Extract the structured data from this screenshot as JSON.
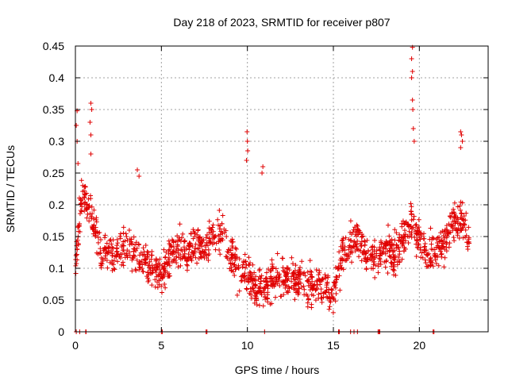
{
  "chart_data": {
    "type": "scatter",
    "title": "Day 218 of 2023, SRMTID for receiver p807",
    "xlabel": "GPS time / hours",
    "ylabel": "SRMTID / TECUs",
    "xlim": [
      0,
      24
    ],
    "ylim": [
      0,
      0.45
    ],
    "x_ticks": [
      0,
      5,
      10,
      15,
      20
    ],
    "x_tick_labels": [
      "0",
      "5",
      "10",
      "15",
      "20"
    ],
    "y_ticks": [
      0,
      0.05,
      0.1,
      0.15,
      0.2,
      0.25,
      0.3,
      0.35,
      0.4,
      0.45
    ],
    "y_tick_labels": [
      "0",
      "0.05",
      "0.1",
      "0.15",
      "0.2",
      "0.25",
      "0.3",
      "0.35",
      "0.4",
      "0.45"
    ],
    "grid": true,
    "marker": "+",
    "color": "#e00000",
    "x_range_hours": [
      0,
      22.9
    ],
    "trend": [
      [
        0.0,
        0.1
      ],
      [
        0.3,
        0.2
      ],
      [
        0.6,
        0.21
      ],
      [
        1.0,
        0.17
      ],
      [
        1.5,
        0.13
      ],
      [
        2.0,
        0.12
      ],
      [
        2.5,
        0.13
      ],
      [
        3.0,
        0.14
      ],
      [
        3.5,
        0.12
      ],
      [
        4.0,
        0.11
      ],
      [
        4.5,
        0.1
      ],
      [
        5.0,
        0.09
      ],
      [
        5.5,
        0.12
      ],
      [
        6.0,
        0.13
      ],
      [
        6.5,
        0.12
      ],
      [
        7.0,
        0.14
      ],
      [
        7.5,
        0.13
      ],
      [
        8.0,
        0.15
      ],
      [
        8.5,
        0.16
      ],
      [
        9.0,
        0.12
      ],
      [
        9.5,
        0.1
      ],
      [
        10.0,
        0.09
      ],
      [
        10.5,
        0.07
      ],
      [
        11.0,
        0.07
      ],
      [
        11.5,
        0.08
      ],
      [
        12.0,
        0.09
      ],
      [
        12.5,
        0.08
      ],
      [
        13.0,
        0.08
      ],
      [
        13.5,
        0.07
      ],
      [
        14.0,
        0.08
      ],
      [
        14.5,
        0.07
      ],
      [
        15.0,
        0.06
      ],
      [
        15.5,
        0.12
      ],
      [
        16.0,
        0.14
      ],
      [
        16.5,
        0.15
      ],
      [
        17.0,
        0.12
      ],
      [
        17.5,
        0.12
      ],
      [
        18.0,
        0.13
      ],
      [
        18.5,
        0.12
      ],
      [
        19.0,
        0.14
      ],
      [
        19.5,
        0.17
      ],
      [
        20.0,
        0.15
      ],
      [
        20.5,
        0.12
      ],
      [
        21.0,
        0.12
      ],
      [
        21.5,
        0.15
      ],
      [
        22.0,
        0.17
      ],
      [
        22.5,
        0.18
      ],
      [
        22.9,
        0.14
      ]
    ],
    "spikes": [
      [
        0.1,
        0.348
      ],
      [
        0.05,
        0.325
      ],
      [
        0.1,
        0.3
      ],
      [
        0.15,
        0.265
      ],
      [
        0.9,
        0.36
      ],
      [
        0.95,
        0.35
      ],
      [
        0.85,
        0.33
      ],
      [
        0.9,
        0.31
      ],
      [
        0.9,
        0.28
      ],
      [
        3.6,
        0.255
      ],
      [
        3.7,
        0.245
      ],
      [
        9.98,
        0.315
      ],
      [
        10.0,
        0.3
      ],
      [
        10.02,
        0.285
      ],
      [
        9.95,
        0.27
      ],
      [
        10.9,
        0.26
      ],
      [
        10.85,
        0.25
      ],
      [
        19.6,
        0.448
      ],
      [
        19.55,
        0.43
      ],
      [
        19.6,
        0.41
      ],
      [
        19.55,
        0.4
      ],
      [
        19.6,
        0.365
      ],
      [
        19.62,
        0.35
      ],
      [
        19.65,
        0.32
      ],
      [
        19.7,
        0.3
      ],
      [
        22.4,
        0.315
      ],
      [
        22.45,
        0.31
      ],
      [
        22.5,
        0.3
      ],
      [
        22.4,
        0.29
      ]
    ],
    "zero_points": [
      0.05,
      0.25,
      0.6,
      0.62,
      5.0,
      5.05,
      7.6,
      7.65,
      11.0,
      15.3,
      15.35,
      16.0,
      16.2,
      16.4,
      17.6,
      17.65,
      17.7,
      20.8,
      20.85
    ]
  }
}
